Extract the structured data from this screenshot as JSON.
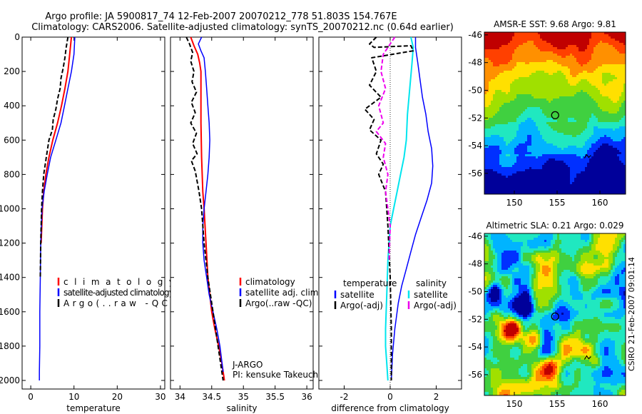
{
  "header": {
    "title_line1": "Argo profile: JA 5900817_74 12-Feb-2007 20070212_778 51.803S 154.767E",
    "title_line2": "Climatology: CARS2006. Satellite-adjusted climatology: synTS_20070212.nc (0.64d earlier)"
  },
  "side_text": "CSIRO 21-Feb-2007 09:01:14",
  "colors": {
    "climatology": "#ff0000",
    "satellite": "#0000ff",
    "satellite_diff": "#00e5ee",
    "argo": "#000000",
    "argo_diff": "#ee00ee"
  },
  "chart_data": [
    {
      "type": "line",
      "panel": "temperature",
      "xlabel": "temperature",
      "ylabel": "",
      "xlim": [
        -2,
        31
      ],
      "ylim": [
        2050,
        0
      ],
      "x_ticks": [
        0,
        10,
        20,
        30
      ],
      "y_ticks": [
        0,
        200,
        400,
        600,
        800,
        1000,
        1200,
        1400,
        1600,
        1800,
        2000
      ],
      "legend": [
        "climatology",
        "satellite-adjusted climatology",
        "Argo(..raw -QC)"
      ],
      "legend_position": "lower-center",
      "series": [
        {
          "name": "climatology",
          "color": "red",
          "style": "solid",
          "width": 2,
          "x": [
            9.4,
            9.0,
            8.6,
            7.9,
            7.1,
            6.2,
            5.1,
            4.2,
            3.5,
            3.0,
            2.7,
            2.4
          ],
          "y": [
            0,
            100,
            200,
            300,
            400,
            500,
            600,
            700,
            800,
            900,
            1000,
            1200
          ]
        },
        {
          "name": "satellite-adjusted climatology",
          "color": "blue",
          "style": "solid",
          "width": 1.5,
          "x": [
            10.2,
            10.0,
            9.4,
            8.6,
            7.8,
            7.0,
            5.8,
            4.6,
            3.8,
            3.1,
            2.6,
            2.3,
            2.2,
            2.1,
            2.1,
            2.0,
            2.0
          ],
          "y": [
            0,
            100,
            200,
            300,
            400,
            500,
            600,
            700,
            800,
            900,
            1000,
            1200,
            1400,
            1600,
            1800,
            1950,
            2000
          ]
        },
        {
          "name": "Argo(..raw -QC)",
          "color": "black",
          "style": "dashed",
          "width": 2,
          "x": [
            8.6,
            8.2,
            7.9,
            7.5,
            7.0,
            6.8,
            6.2,
            5.8,
            5.2,
            5.0,
            4.2,
            3.6,
            3.0,
            2.7,
            2.5,
            2.4,
            2.3,
            2.2
          ],
          "y": [
            0,
            60,
            120,
            180,
            240,
            300,
            360,
            420,
            480,
            540,
            600,
            700,
            800,
            900,
            1000,
            1100,
            1200,
            1400
          ]
        }
      ]
    },
    {
      "type": "line",
      "panel": "salinity",
      "xlabel": "salinity",
      "ylabel": "",
      "xlim": [
        33.85,
        36.1
      ],
      "ylim": [
        2050,
        0
      ],
      "x_ticks": [
        34,
        34.5,
        35,
        35.5,
        36
      ],
      "y_ticks": [
        0,
        200,
        400,
        600,
        800,
        1000,
        1200,
        1400,
        1600,
        1800,
        2000
      ],
      "legend": [
        "climatology",
        "satellite adj. clim.",
        "Argo(..raw -QC)"
      ],
      "legend_position": "lower-right",
      "annotation_lines": [
        "J-ARGO",
        "PI: kensuke Takeuchi"
      ],
      "series": [
        {
          "name": "climatology",
          "color": "red",
          "style": "solid",
          "width": 2,
          "x": [
            34.17,
            34.22,
            34.28,
            34.31,
            34.33,
            34.33,
            34.33,
            34.34,
            34.36,
            34.38,
            34.41,
            34.44,
            34.5,
            34.55,
            34.61,
            34.66,
            34.7
          ],
          "y": [
            0,
            50,
            100,
            150,
            200,
            300,
            500,
            700,
            900,
            1000,
            1200,
            1400,
            1600,
            1700,
            1800,
            1900,
            2000
          ]
        },
        {
          "name": "satellite adj. clim.",
          "color": "blue",
          "style": "solid",
          "width": 1.5,
          "x": [
            34.34,
            34.29,
            34.33,
            34.38,
            34.4,
            34.42,
            34.44,
            34.46,
            34.47,
            34.46,
            34.44,
            34.41,
            34.38,
            34.36,
            34.36,
            34.38,
            34.42,
            34.46,
            34.52,
            34.58,
            34.63,
            34.68
          ],
          "y": [
            0,
            40,
            80,
            120,
            200,
            300,
            400,
            500,
            600,
            700,
            800,
            900,
            1000,
            1100,
            1200,
            1300,
            1400,
            1500,
            1600,
            1700,
            1800,
            1950
          ]
        },
        {
          "name": "Argo(..raw -QC)",
          "color": "black",
          "style": "dashed",
          "width": 2,
          "x": [
            34.1,
            34.15,
            34.2,
            34.17,
            34.22,
            34.19,
            34.26,
            34.18,
            34.24,
            34.17,
            34.26,
            34.2,
            34.27,
            34.18,
            34.24,
            34.3,
            34.34,
            34.38,
            34.44,
            34.52,
            34.6,
            34.68
          ],
          "y": [
            0,
            40,
            90,
            140,
            200,
            260,
            320,
            380,
            440,
            500,
            560,
            620,
            680,
            720,
            780,
            900,
            1000,
            1200,
            1400,
            1600,
            1800,
            2000
          ]
        }
      ]
    },
    {
      "type": "line",
      "panel": "difference",
      "xlabel": "difference from climatology",
      "ylabel": "",
      "xlim": [
        -3.1,
        3.1
      ],
      "ylim": [
        2050,
        0
      ],
      "x_ticks": [
        -2,
        0,
        2
      ],
      "y_ticks": [
        0,
        200,
        400,
        600,
        800,
        1000,
        1200,
        1400,
        1600,
        1800,
        2000
      ],
      "zero_line": true,
      "legend_groups": [
        {
          "title": "temperature",
          "entries": [
            "satellite",
            "Argo(-adj)"
          ]
        },
        {
          "title": "salinity",
          "entries": [
            "satellite",
            "Argo(-adj)"
          ]
        }
      ],
      "legend_position": "lower-center",
      "series": [
        {
          "name": "temperature satellite",
          "color": "blue",
          "style": "solid",
          "width": 1.5,
          "x": [
            1.1,
            1.1,
            1.2,
            1.3,
            1.4,
            1.55,
            1.65,
            1.8,
            1.85,
            1.8,
            1.6,
            1.35,
            1.1,
            0.9,
            0.7,
            0.5,
            0.35,
            0.2,
            0.1,
            0.05
          ],
          "y": [
            0,
            60,
            150,
            250,
            350,
            450,
            550,
            650,
            750,
            850,
            950,
            1050,
            1150,
            1250,
            1350,
            1450,
            1550,
            1700,
            1850,
            2000
          ]
        },
        {
          "name": "salinity satellite",
          "color": "cyan",
          "style": "solid",
          "width": 2,
          "x": [
            0.9,
            1.0,
            0.95,
            0.85,
            0.75,
            0.7,
            0.6,
            0.45,
            0.3,
            0.15,
            0.0,
            -0.1,
            -0.15,
            -0.2,
            -0.2,
            -0.15,
            -0.1
          ],
          "y": [
            0,
            60,
            150,
            300,
            450,
            600,
            700,
            800,
            900,
            1000,
            1100,
            1300,
            1500,
            1700,
            1800,
            1900,
            2000
          ]
        },
        {
          "name": "temperature Argo(-adj)",
          "color": "black",
          "style": "dashed",
          "width": 2,
          "x": [
            -0.6,
            -0.9,
            -0.7,
            0.9,
            1.0,
            -0.8,
            -0.6,
            -0.9,
            -0.4,
            -1.1,
            -0.7,
            -0.9,
            -0.4,
            -0.6,
            -0.3,
            -0.5,
            -0.2,
            -0.1,
            0.0,
            0.05,
            0.05
          ],
          "y": [
            0,
            40,
            60,
            50,
            80,
            120,
            200,
            280,
            350,
            420,
            480,
            540,
            600,
            680,
            740,
            800,
            900,
            1100,
            1400,
            1700,
            2000
          ]
        },
        {
          "name": "salinity Argo(-adj)",
          "color": "magenta",
          "style": "dashed",
          "width": 2,
          "x": [
            0.2,
            0.0,
            -0.3,
            -0.4,
            -0.2,
            -0.5,
            -0.3,
            -0.6,
            -0.2,
            -0.3,
            -0.1,
            -0.2,
            0.0,
            -0.05
          ],
          "y": [
            0,
            40,
            100,
            200,
            300,
            400,
            500,
            550,
            620,
            700,
            800,
            900,
            1100,
            1300
          ]
        }
      ]
    },
    {
      "type": "heatmap",
      "panel": "sst_map",
      "title": "AMSR-E SST: 9.68 Argo: 9.81",
      "xlim": [
        146.5,
        163
      ],
      "ylim": [
        -57.5,
        -45.8
      ],
      "x_ticks": [
        150,
        155,
        160
      ],
      "y_ticks": [
        -46,
        -48,
        -50,
        -52,
        -54,
        -56
      ],
      "argo_position": [
        154.77,
        -51.8
      ],
      "colors": [
        "#00009a",
        "#0030ff",
        "#00b4ff",
        "#20e8c0",
        "#40d040",
        "#a0e000",
        "#ffe000",
        "#ff9000",
        "#ff4000",
        "#c00000"
      ]
    },
    {
      "type": "heatmap",
      "panel": "sla_map",
      "title": "Altimetric SLA: 0.21 Argo: 0.029",
      "xlim": [
        146.5,
        163
      ],
      "ylim": [
        -57.5,
        -45.8
      ],
      "x_ticks": [
        150,
        155,
        160
      ],
      "y_ticks": [
        -46,
        -48,
        -50,
        -52,
        -54,
        -56
      ],
      "argo_position": [
        154.77,
        -51.8
      ],
      "colors": [
        "#00009a",
        "#0030ff",
        "#00b4ff",
        "#20e8c0",
        "#40d040",
        "#a0e000",
        "#ffe000",
        "#ff9000",
        "#ff4000",
        "#c00000"
      ]
    }
  ]
}
